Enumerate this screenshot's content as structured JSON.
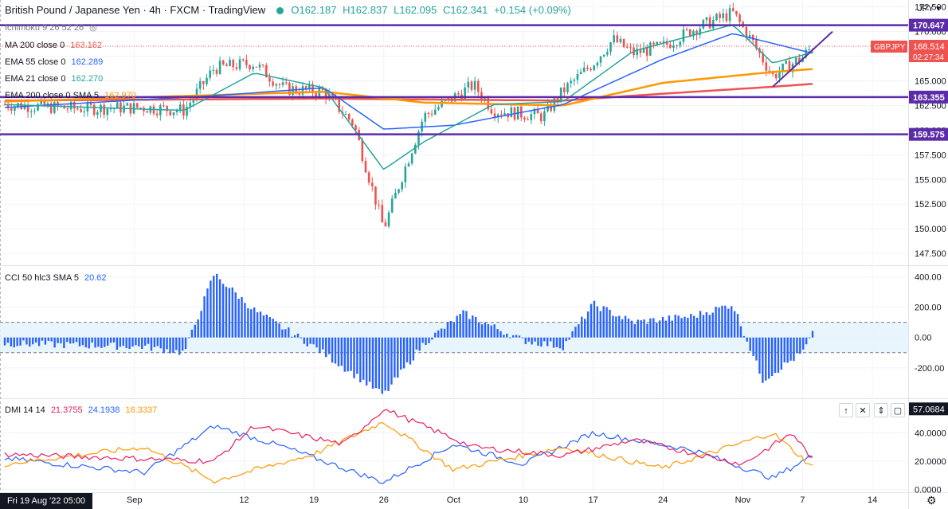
{
  "header": {
    "symbol_title": "British Pound / Japanese Yen · 4h · FXCM · TradingView",
    "open": "O162.187",
    "high": "H162.837",
    "low": "L162.095",
    "close": "C162.341",
    "change": "+0.154 (+0.09%)",
    "currency": "JPY",
    "status_color": "#26a69a"
  },
  "indicators": [
    {
      "label": "Ichimoku 9 26 52 26",
      "value": "",
      "color": "#787b86"
    },
    {
      "label": "MA 200 close 0",
      "value": "163.162",
      "color": "#ef5350"
    },
    {
      "label": "EMA 55 close 0",
      "value": "162.289",
      "color": "#2962ff"
    },
    {
      "label": "EMA 21 close 0",
      "value": "162.270",
      "color": "#26a69a"
    },
    {
      "label": "EMA 200 close 0 SMA 5",
      "value": "162.970",
      "color": "#ff9800"
    }
  ],
  "price_axis": {
    "ticks": [
      "172.500",
      "170.000",
      "167.500",
      "165.000",
      "162.500",
      "160.000",
      "157.500",
      "155.000",
      "152.500",
      "150.000",
      "147.500"
    ],
    "tick_values": [
      172.5,
      170,
      167.5,
      165,
      162.5,
      160,
      157.5,
      155,
      152.5,
      150,
      147.5
    ],
    "range": [
      146.3,
      173.2
    ],
    "labels": [
      {
        "text": "170.647",
        "value": 170.647,
        "bg": "#5b2ca8"
      },
      {
        "text": "163.355",
        "value": 163.355,
        "bg": "#5b2ca8"
      },
      {
        "text": "159.575",
        "value": 159.575,
        "bg": "#5b2ca8"
      }
    ],
    "last_price": "168.514",
    "last_price_value": 168.514,
    "countdown": "02:27:34",
    "symbol_tag": "GBPJPY"
  },
  "horizontal_levels": [
    170.647,
    163.355,
    159.575
  ],
  "cci": {
    "legend_label": "CCI 50 hlc3 SMA 5",
    "legend_value": "20.62",
    "ticks": [
      "400.00",
      "200.00",
      "0.00",
      "-200.00"
    ],
    "tick_values": [
      400,
      200,
      0,
      -200
    ],
    "range": [
      -400,
      470
    ],
    "bands": [
      100,
      -100
    ]
  },
  "dmi": {
    "legend_label": "DMI 14 14",
    "values": [
      "21.3755",
      "24.1938",
      "16.3337"
    ],
    "colors": [
      "#e91e63",
      "#2962ff",
      "#ff9800"
    ],
    "ticks": [
      "40.0000",
      "20.0000",
      "0.0000"
    ],
    "tick_values": [
      40,
      20,
      0
    ],
    "range": [
      -2,
      64
    ],
    "top_label": "57.0684",
    "top_label_value": 57.0684
  },
  "time_axis": {
    "start_badge": "Fri 19 Aug '22  05:00",
    "labels": [
      "Sep",
      "12",
      "19",
      "26",
      "Oct",
      "10",
      "17",
      "24",
      "Nov",
      "7",
      "14"
    ]
  },
  "chart_data": {
    "type": "candlestick",
    "title": "British Pound / Japanese Yen · 4h · FXCM",
    "x_start": "2022-08-19",
    "x_end": "2022-11-08",
    "close_profile": [
      {
        "date": "2022-08-19",
        "close": 162.6
      },
      {
        "date": "2022-08-26",
        "close": 162.2
      },
      {
        "date": "2022-09-02",
        "close": 162.3
      },
      {
        "date": "2022-09-06",
        "close": 162.0
      },
      {
        "date": "2022-09-09",
        "close": 166.3
      },
      {
        "date": "2022-09-13",
        "close": 166.8
      },
      {
        "date": "2022-09-16",
        "close": 164.2
      },
      {
        "date": "2022-09-20",
        "close": 163.9
      },
      {
        "date": "2022-09-23",
        "close": 160.6
      },
      {
        "date": "2022-09-26",
        "close": 150.0
      },
      {
        "date": "2022-09-28",
        "close": 155.8
      },
      {
        "date": "2022-09-30",
        "close": 161.4
      },
      {
        "date": "2022-10-05",
        "close": 164.6
      },
      {
        "date": "2022-10-07",
        "close": 162.0
      },
      {
        "date": "2022-10-12",
        "close": 161.4
      },
      {
        "date": "2022-10-14",
        "close": 164.0
      },
      {
        "date": "2022-10-17",
        "close": 166.8
      },
      {
        "date": "2022-10-19",
        "close": 169.2
      },
      {
        "date": "2022-10-21",
        "close": 167.8
      },
      {
        "date": "2022-10-24",
        "close": 168.5
      },
      {
        "date": "2022-10-27",
        "close": 170.2
      },
      {
        "date": "2022-10-31",
        "close": 171.9
      },
      {
        "date": "2022-11-02",
        "close": 168.9
      },
      {
        "date": "2022-11-04",
        "close": 165.5
      },
      {
        "date": "2022-11-07",
        "close": 167.4
      },
      {
        "date": "2022-11-08",
        "close": 168.5
      }
    ],
    "ema21": [
      {
        "date": "2022-08-19",
        "value": 162.6
      },
      {
        "date": "2022-09-06",
        "value": 162.0
      },
      {
        "date": "2022-09-13",
        "value": 165.8
      },
      {
        "date": "2022-09-20",
        "value": 164.3
      },
      {
        "date": "2022-09-26",
        "value": 156.0
      },
      {
        "date": "2022-09-30",
        "value": 158.8
      },
      {
        "date": "2022-10-07",
        "value": 162.6
      },
      {
        "date": "2022-10-14",
        "value": 162.9
      },
      {
        "date": "2022-10-21",
        "value": 168.0
      },
      {
        "date": "2022-10-31",
        "value": 170.7
      },
      {
        "date": "2022-11-04",
        "value": 166.8
      },
      {
        "date": "2022-11-08",
        "value": 167.9
      }
    ],
    "ema55": [
      {
        "date": "2022-08-19",
        "value": 162.3
      },
      {
        "date": "2022-09-09",
        "value": 163.5
      },
      {
        "date": "2022-09-20",
        "value": 164.3
      },
      {
        "date": "2022-09-26",
        "value": 160.1
      },
      {
        "date": "2022-10-03",
        "value": 160.5
      },
      {
        "date": "2022-10-14",
        "value": 162.6
      },
      {
        "date": "2022-10-24",
        "value": 167.2
      },
      {
        "date": "2022-10-31",
        "value": 169.8
      },
      {
        "date": "2022-11-08",
        "value": 167.8
      }
    ],
    "ema200": [
      {
        "date": "2022-08-19",
        "value": 162.9
      },
      {
        "date": "2022-09-20",
        "value": 163.9
      },
      {
        "date": "2022-09-30",
        "value": 162.8
      },
      {
        "date": "2022-10-14",
        "value": 162.5
      },
      {
        "date": "2022-10-24",
        "value": 164.8
      },
      {
        "date": "2022-11-04",
        "value": 165.9
      },
      {
        "date": "2022-11-08",
        "value": 166.2
      }
    ],
    "ma200": [
      {
        "date": "2022-08-19",
        "value": 163.0
      },
      {
        "date": "2022-09-20",
        "value": 163.2
      },
      {
        "date": "2022-10-14",
        "value": 163.0
      },
      {
        "date": "2022-10-24",
        "value": 163.7
      },
      {
        "date": "2022-11-04",
        "value": 164.4
      },
      {
        "date": "2022-11-08",
        "value": 164.7
      }
    ],
    "trendline": [
      {
        "date": "2022-11-04",
        "value": 164.4
      },
      {
        "date": "2022-11-10",
        "value": 170.0
      }
    ],
    "cci_profile": [
      {
        "date": "2022-08-19",
        "value": -40
      },
      {
        "date": "2022-09-02",
        "value": -60
      },
      {
        "date": "2022-09-06",
        "value": -100
      },
      {
        "date": "2022-09-09",
        "value": 420
      },
      {
        "date": "2022-09-13",
        "value": 180
      },
      {
        "date": "2022-09-19",
        "value": -60
      },
      {
        "date": "2022-09-26",
        "value": -380
      },
      {
        "date": "2022-09-30",
        "value": -40
      },
      {
        "date": "2022-10-04",
        "value": 160
      },
      {
        "date": "2022-10-10",
        "value": -20
      },
      {
        "date": "2022-10-14",
        "value": -60
      },
      {
        "date": "2022-10-17",
        "value": 220
      },
      {
        "date": "2022-10-21",
        "value": 100
      },
      {
        "date": "2022-10-27",
        "value": 140
      },
      {
        "date": "2022-10-31",
        "value": 220
      },
      {
        "date": "2022-11-03",
        "value": -280
      },
      {
        "date": "2022-11-07",
        "value": -100
      },
      {
        "date": "2022-11-08",
        "value": 20
      }
    ],
    "dmi_plus": [
      {
        "date": "2022-08-19",
        "value": 22
      },
      {
        "date": "2022-09-02",
        "value": 12
      },
      {
        "date": "2022-09-09",
        "value": 45
      },
      {
        "date": "2022-09-16",
        "value": 30
      },
      {
        "date": "2022-09-26",
        "value": 5
      },
      {
        "date": "2022-10-03",
        "value": 32
      },
      {
        "date": "2022-10-10",
        "value": 18
      },
      {
        "date": "2022-10-17",
        "value": 40
      },
      {
        "date": "2022-10-27",
        "value": 28
      },
      {
        "date": "2022-11-04",
        "value": 8
      },
      {
        "date": "2022-11-08",
        "value": 24
      }
    ],
    "dmi_minus": [
      {
        "date": "2022-08-19",
        "value": 18
      },
      {
        "date": "2022-09-02",
        "value": 30
      },
      {
        "date": "2022-09-09",
        "value": 6
      },
      {
        "date": "2022-09-19",
        "value": 25
      },
      {
        "date": "2022-09-26",
        "value": 48
      },
      {
        "date": "2022-10-03",
        "value": 14
      },
      {
        "date": "2022-10-14",
        "value": 30
      },
      {
        "date": "2022-10-24",
        "value": 15
      },
      {
        "date": "2022-11-04",
        "value": 40
      },
      {
        "date": "2022-11-08",
        "value": 16
      }
    ],
    "adx": [
      {
        "date": "2022-08-19",
        "value": 25
      },
      {
        "date": "2022-09-09",
        "value": 20
      },
      {
        "date": "2022-09-13",
        "value": 45
      },
      {
        "date": "2022-09-22",
        "value": 32
      },
      {
        "date": "2022-09-26",
        "value": 57
      },
      {
        "date": "2022-10-05",
        "value": 30
      },
      {
        "date": "2022-10-14",
        "value": 24
      },
      {
        "date": "2022-10-21",
        "value": 35
      },
      {
        "date": "2022-11-01",
        "value": 18
      },
      {
        "date": "2022-11-06",
        "value": 40
      },
      {
        "date": "2022-11-08",
        "value": 21
      }
    ]
  }
}
